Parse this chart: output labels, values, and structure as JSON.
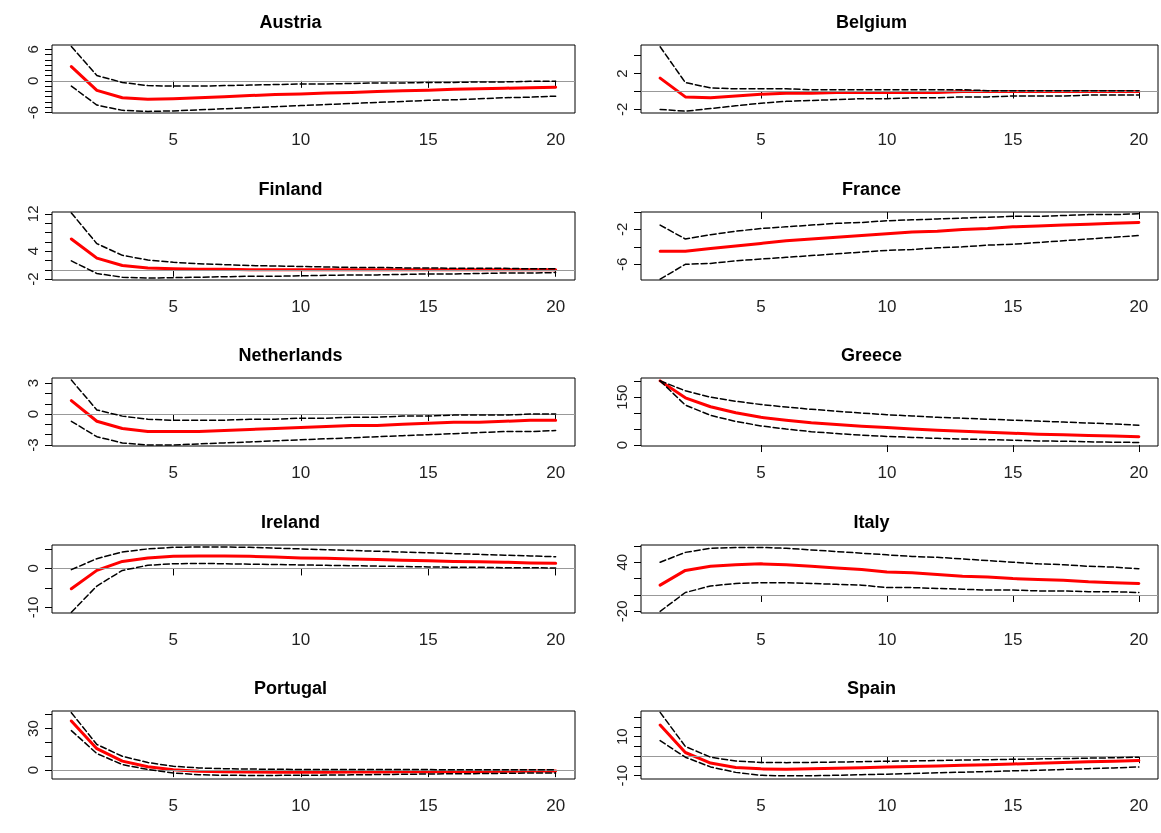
{
  "chart_data": [
    {
      "type": "line",
      "title": "Austria",
      "marker": "none",
      "x": [
        1,
        2,
        3,
        4,
        5,
        6,
        7,
        8,
        9,
        10,
        11,
        12,
        13,
        14,
        15,
        16,
        17,
        18,
        19,
        20
      ],
      "xlim": [
        0.24,
        20.76
      ],
      "xticks": [
        5,
        10,
        15,
        20
      ],
      "ylim": [
        -6.1,
        6.8
      ],
      "yticks": [
        -6,
        {
          "value": -5,
          "label": null
        },
        {
          "value": -4,
          "label": null
        },
        {
          "value": -3,
          "label": null
        },
        {
          "value": -2,
          "label": null
        },
        {
          "value": -1,
          "label": null
        },
        0,
        {
          "value": 1,
          "label": null
        },
        {
          "value": 2,
          "label": null
        },
        {
          "value": 3,
          "label": null
        },
        {
          "value": 4,
          "label": null
        },
        {
          "value": 5,
          "label": null
        },
        6
      ],
      "ref_lines": [
        {
          "axis": "y",
          "value": 0,
          "color": "#999999"
        }
      ],
      "series": [
        {
          "color": "#ff0000",
          "values": [
            2.7,
            -1.8,
            -3.2,
            -3.5,
            -3.4,
            -3.2,
            -3.0,
            -2.8,
            -2.6,
            -2.5,
            -2.3,
            -2.2,
            -2.0,
            -1.9,
            -1.8,
            -1.6,
            -1.5,
            -1.4,
            -1.3,
            -1.2
          ]
        },
        {
          "color": "#000000",
          "line_style": "dashed",
          "values": [
            6.5,
            1.0,
            -0.3,
            -0.9,
            -1.0,
            -1.0,
            -0.9,
            -0.8,
            -0.7,
            -0.6,
            -0.6,
            -0.5,
            -0.4,
            -0.4,
            -0.3,
            -0.3,
            -0.2,
            -0.2,
            -0.1,
            -0.1
          ]
        },
        {
          "color": "#000000",
          "line_style": "dashed",
          "values": [
            -1.0,
            -4.6,
            -5.6,
            -5.8,
            -5.7,
            -5.5,
            -5.3,
            -5.1,
            -4.9,
            -4.7,
            -4.5,
            -4.3,
            -4.1,
            -3.9,
            -3.7,
            -3.6,
            -3.4,
            -3.2,
            -3.1,
            -2.9
          ]
        }
      ]
    },
    {
      "type": "line",
      "title": "Belgium",
      "marker": "none",
      "x": [
        1,
        2,
        3,
        4,
        5,
        6,
        7,
        8,
        9,
        10,
        11,
        12,
        13,
        14,
        15,
        16,
        17,
        18,
        19,
        20
      ],
      "xlim": [
        0.24,
        20.76
      ],
      "xticks": [
        5,
        10,
        15,
        20
      ],
      "ylim": [
        -2.4,
        5.2
      ],
      "yticks": [
        -2,
        {
          "value": 0,
          "label": null
        },
        2,
        {
          "value": 4,
          "label": null
        }
      ],
      "ref_lines": [
        {
          "axis": "y",
          "value": 0,
          "color": "#999999"
        }
      ],
      "series": [
        {
          "color": "#ff0000",
          "values": [
            1.5,
            -0.6,
            -0.7,
            -0.5,
            -0.3,
            -0.2,
            -0.2,
            -0.1,
            -0.1,
            -0.1,
            -0.1,
            -0.1,
            0,
            0,
            0,
            0,
            0,
            0,
            0,
            0
          ]
        },
        {
          "color": "#000000",
          "line_style": "dashed",
          "values": [
            5.0,
            1.0,
            0.4,
            0.3,
            0.3,
            0.3,
            0.2,
            0.2,
            0.2,
            0.2,
            0.2,
            0.2,
            0.2,
            0.1,
            0.1,
            0.1,
            0.1,
            0.1,
            0.1,
            0.1
          ]
        },
        {
          "color": "#000000",
          "line_style": "dashed",
          "values": [
            -2.0,
            -2.2,
            -1.9,
            -1.6,
            -1.3,
            -1.1,
            -1.0,
            -0.9,
            -0.8,
            -0.8,
            -0.7,
            -0.7,
            -0.6,
            -0.6,
            -0.5,
            -0.5,
            -0.5,
            -0.4,
            -0.4,
            -0.4
          ]
        }
      ]
    },
    {
      "type": "line",
      "title": "Finland",
      "marker": "none",
      "x": [
        1,
        2,
        3,
        4,
        5,
        6,
        7,
        8,
        9,
        10,
        11,
        12,
        13,
        14,
        15,
        16,
        17,
        18,
        19,
        20
      ],
      "xlim": [
        0.24,
        20.76
      ],
      "xticks": [
        5,
        10,
        15,
        20
      ],
      "ylim": [
        -2.2,
        12.4
      ],
      "yticks": [
        -2,
        {
          "value": 0,
          "label": null
        },
        {
          "value": 2,
          "label": null
        },
        4,
        {
          "value": 6,
          "label": null
        },
        {
          "value": 8,
          "label": null
        },
        {
          "value": 10,
          "label": null
        },
        12
      ],
      "ref_lines": [
        {
          "axis": "y",
          "value": 0,
          "color": "#999999"
        }
      ],
      "series": [
        {
          "color": "#ff0000",
          "values": [
            6.6,
            2.5,
            0.9,
            0.4,
            0.2,
            0.1,
            0.1,
            0,
            0,
            0,
            0,
            0,
            0,
            0,
            0,
            0,
            0,
            0,
            0,
            0
          ]
        },
        {
          "color": "#000000",
          "line_style": "dashed",
          "values": [
            12.2,
            5.6,
            3.1,
            2.1,
            1.6,
            1.3,
            1.1,
            0.9,
            0.8,
            0.7,
            0.6,
            0.5,
            0.5,
            0.4,
            0.4,
            0.3,
            0.3,
            0.3,
            0.2,
            0.2
          ]
        },
        {
          "color": "#000000",
          "line_style": "dashed",
          "values": [
            1.9,
            -0.8,
            -1.6,
            -1.8,
            -1.7,
            -1.6,
            -1.5,
            -1.4,
            -1.4,
            -1.3,
            -1.2,
            -1.1,
            -1.1,
            -1.0,
            -0.9,
            -0.9,
            -0.8,
            -0.7,
            -0.7,
            -0.6
          ]
        }
      ]
    },
    {
      "type": "line",
      "title": "France",
      "marker": "none",
      "x": [
        1,
        2,
        3,
        4,
        5,
        6,
        7,
        8,
        9,
        10,
        11,
        12,
        13,
        14,
        15,
        16,
        17,
        18,
        19,
        20
      ],
      "xlim": [
        0.24,
        20.76
      ],
      "xticks": [
        5,
        10,
        15,
        20
      ],
      "ylim": [
        -7.8,
        0
      ],
      "yticks": [
        -6,
        {
          "value": -4,
          "label": null
        },
        -2,
        {
          "value": 0,
          "label": null
        }
      ],
      "series": [
        {
          "color": "#ff0000",
          "values": [
            -4.5,
            -4.5,
            -4.2,
            -3.9,
            -3.6,
            -3.3,
            -3.1,
            -2.9,
            -2.7,
            -2.5,
            -2.3,
            -2.2,
            -2.0,
            -1.9,
            -1.7,
            -1.6,
            -1.5,
            -1.4,
            -1.3,
            -1.2
          ]
        },
        {
          "color": "#000000",
          "line_style": "dashed",
          "values": [
            -1.5,
            -3.1,
            -2.6,
            -2.2,
            -1.9,
            -1.7,
            -1.5,
            -1.3,
            -1.2,
            -1.0,
            -0.9,
            -0.8,
            -0.7,
            -0.6,
            -0.5,
            -0.5,
            -0.4,
            -0.3,
            -0.3,
            -0.2
          ]
        },
        {
          "color": "#000000",
          "line_style": "dashed",
          "values": [
            -7.7,
            -6.0,
            -5.9,
            -5.6,
            -5.4,
            -5.2,
            -5.0,
            -4.8,
            -4.6,
            -4.4,
            -4.3,
            -4.1,
            -4.0,
            -3.8,
            -3.7,
            -3.5,
            -3.3,
            -3.1,
            -2.9,
            -2.7
          ]
        }
      ]
    },
    {
      "type": "line",
      "title": "Netherlands",
      "marker": "none",
      "x": [
        1,
        2,
        3,
        4,
        5,
        6,
        7,
        8,
        9,
        10,
        11,
        12,
        13,
        14,
        15,
        16,
        17,
        18,
        19,
        20
      ],
      "xlim": [
        0.24,
        20.76
      ],
      "xticks": [
        5,
        10,
        15,
        20
      ],
      "ylim": [
        -3.1,
        3.5
      ],
      "yticks": [
        -3,
        {
          "value": -2,
          "label": null
        },
        {
          "value": -1,
          "label": null
        },
        0,
        {
          "value": 1,
          "label": null
        },
        {
          "value": 2,
          "label": null
        },
        3
      ],
      "ref_lines": [
        {
          "axis": "y",
          "value": 0,
          "color": "#999999"
        }
      ],
      "series": [
        {
          "color": "#ff0000",
          "values": [
            1.3,
            -0.7,
            -1.4,
            -1.7,
            -1.7,
            -1.7,
            -1.6,
            -1.5,
            -1.4,
            -1.3,
            -1.2,
            -1.1,
            -1.1,
            -1.0,
            -0.9,
            -0.8,
            -0.8,
            -0.7,
            -0.6,
            -0.6
          ]
        },
        {
          "color": "#000000",
          "line_style": "dashed",
          "values": [
            3.3,
            0.4,
            -0.2,
            -0.5,
            -0.6,
            -0.6,
            -0.6,
            -0.5,
            -0.5,
            -0.4,
            -0.4,
            -0.3,
            -0.3,
            -0.2,
            -0.2,
            -0.1,
            -0.1,
            -0.1,
            0,
            0
          ]
        },
        {
          "color": "#000000",
          "line_style": "dashed",
          "values": [
            -0.7,
            -2.2,
            -2.8,
            -3.0,
            -3.0,
            -2.9,
            -2.8,
            -2.7,
            -2.6,
            -2.5,
            -2.4,
            -2.3,
            -2.2,
            -2.1,
            -2.0,
            -1.9,
            -1.8,
            -1.7,
            -1.7,
            -1.6
          ]
        }
      ]
    },
    {
      "type": "line",
      "title": "Greece",
      "marker": "none",
      "x": [
        1,
        2,
        3,
        4,
        5,
        6,
        7,
        8,
        9,
        10,
        11,
        12,
        13,
        14,
        15,
        16,
        17,
        18,
        19,
        20
      ],
      "xlim": [
        0.24,
        20.76
      ],
      "xticks": [
        5,
        10,
        15,
        20
      ],
      "ylim": [
        -3,
        210
      ],
      "yticks": [
        0,
        {
          "value": 50,
          "label": null
        },
        {
          "value": 100,
          "label": null
        },
        150,
        {
          "value": 200,
          "label": null
        }
      ],
      "series": [
        {
          "color": "#ff0000",
          "values": [
            201,
            148,
            120,
            101,
            87,
            78,
            70,
            64,
            59,
            55,
            50,
            46,
            43,
            40,
            37,
            34,
            32,
            30,
            28,
            26
          ]
        },
        {
          "color": "#000000",
          "line_style": "dashed",
          "values": [
            201,
            170,
            150,
            137,
            127,
            119,
            112,
            106,
            100,
            95,
            91,
            87,
            84,
            81,
            78,
            75,
            72,
            69,
            66,
            62
          ]
        },
        {
          "color": "#000000",
          "line_style": "dashed",
          "values": [
            201,
            125,
            93,
            74,
            60,
            50,
            42,
            36,
            31,
            27,
            24,
            21,
            19,
            17,
            15,
            13,
            12,
            10,
            9,
            8
          ]
        }
      ]
    },
    {
      "type": "line",
      "title": "Ireland",
      "marker": "none",
      "x": [
        1,
        2,
        3,
        4,
        5,
        6,
        7,
        8,
        9,
        10,
        11,
        12,
        13,
        14,
        15,
        16,
        17,
        18,
        19,
        20
      ],
      "xlim": [
        0.24,
        20.76
      ],
      "xticks": [
        5,
        10,
        15,
        20
      ],
      "ylim": [
        -11.4,
        6
      ],
      "yticks": [
        -10,
        {
          "value": -5,
          "label": null
        },
        0,
        {
          "value": 5,
          "label": null
        }
      ],
      "ref_lines": [
        {
          "axis": "y",
          "value": 0,
          "color": "#999999"
        }
      ],
      "series": [
        {
          "color": "#ff0000",
          "values": [
            -5.2,
            -0.5,
            1.8,
            2.7,
            3.1,
            3.2,
            3.2,
            3.1,
            2.9,
            2.7,
            2.6,
            2.4,
            2.3,
            2.1,
            2.0,
            1.8,
            1.7,
            1.6,
            1.4,
            1.3
          ]
        },
        {
          "color": "#000000",
          "line_style": "dashed",
          "values": [
            -0.3,
            2.5,
            4.2,
            5.0,
            5.4,
            5.5,
            5.5,
            5.4,
            5.2,
            5.0,
            4.8,
            4.6,
            4.4,
            4.2,
            4.0,
            3.8,
            3.6,
            3.4,
            3.2,
            3.0
          ]
        },
        {
          "color": "#000000",
          "line_style": "dashed",
          "values": [
            -11.2,
            -4.5,
            -0.5,
            0.8,
            1.2,
            1.3,
            1.2,
            1.1,
            1.0,
            0.9,
            0.8,
            0.7,
            0.6,
            0.5,
            0.4,
            0.3,
            0.3,
            0.2,
            0.2,
            0.1
          ]
        }
      ]
    },
    {
      "type": "line",
      "title": "Italy",
      "marker": "none",
      "x": [
        1,
        2,
        3,
        4,
        5,
        6,
        7,
        8,
        9,
        10,
        11,
        12,
        13,
        14,
        15,
        16,
        17,
        18,
        19,
        20
      ],
      "xlim": [
        0.24,
        20.76
      ],
      "xticks": [
        5,
        10,
        15,
        20
      ],
      "ylim": [
        -22,
        61
      ],
      "yticks": [
        -20,
        {
          "value": 0,
          "label": null
        },
        {
          "value": 20,
          "label": null
        },
        40,
        {
          "value": 60,
          "label": null
        }
      ],
      "ref_lines": [
        {
          "axis": "y",
          "value": 0,
          "color": "#999999"
        }
      ],
      "series": [
        {
          "color": "#ff0000",
          "values": [
            12,
            30,
            35,
            37,
            38,
            37,
            35,
            33,
            31,
            28,
            27,
            25,
            23,
            22,
            20,
            19,
            18,
            16,
            15,
            14
          ]
        },
        {
          "color": "#000000",
          "line_style": "dashed",
          "values": [
            40,
            52,
            57,
            58,
            58,
            57,
            55,
            53,
            51,
            49,
            47,
            46,
            44,
            42,
            40,
            38,
            37,
            35,
            34,
            32
          ]
        },
        {
          "color": "#000000",
          "line_style": "dashed",
          "values": [
            -20,
            3,
            11,
            14,
            15,
            15,
            14,
            13,
            12,
            9,
            9,
            8,
            7,
            6,
            6,
            5,
            5,
            4,
            4,
            3
          ]
        }
      ]
    },
    {
      "type": "line",
      "title": "Portugal",
      "marker": "none",
      "x": [
        1,
        2,
        3,
        4,
        5,
        6,
        7,
        8,
        9,
        10,
        11,
        12,
        13,
        14,
        15,
        16,
        17,
        18,
        19,
        20
      ],
      "xlim": [
        0.24,
        20.76
      ],
      "xticks": [
        5,
        10,
        15,
        20
      ],
      "ylim": [
        -6.4,
        42.7
      ],
      "yticks": [
        0,
        {
          "value": 10,
          "label": null
        },
        {
          "value": 20,
          "label": null
        },
        30,
        {
          "value": 40,
          "label": null
        }
      ],
      "ref_lines": [
        {
          "axis": "y",
          "value": 0,
          "color": "#999999"
        }
      ],
      "series": [
        {
          "color": "#ff0000",
          "values": [
            35.5,
            15.5,
            6.5,
            2.5,
            0.3,
            -0.8,
            -1.2,
            -1.4,
            -1.5,
            -1.5,
            -1.5,
            -1.4,
            -1.3,
            -1.2,
            -1.1,
            -1.0,
            -0.9,
            -0.8,
            -0.7,
            -0.6
          ]
        },
        {
          "color": "#000000",
          "line_style": "dashed",
          "values": [
            41.5,
            18.5,
            10,
            5.5,
            2.8,
            1.6,
            1.0,
            0.8,
            0.6,
            0.5,
            0.5,
            0.4,
            0.4,
            0.4,
            0.4,
            0.3,
            0.3,
            0.3,
            0.3,
            0.3
          ]
        },
        {
          "color": "#000000",
          "line_style": "dashed",
          "values": [
            28.5,
            12,
            4,
            0.5,
            -2.0,
            -3.3,
            -3.7,
            -3.8,
            -3.8,
            -3.7,
            -3.6,
            -3.4,
            -3.2,
            -3.0,
            -2.8,
            -2.6,
            -2.5,
            -2.3,
            -2.1,
            -2.0
          ]
        }
      ]
    },
    {
      "type": "line",
      "title": "Spain",
      "marker": "none",
      "x": [
        1,
        2,
        3,
        4,
        5,
        6,
        7,
        8,
        9,
        10,
        11,
        12,
        13,
        14,
        15,
        16,
        17,
        18,
        19,
        20
      ],
      "xlim": [
        0.24,
        20.76
      ],
      "xticks": [
        5,
        10,
        15,
        20
      ],
      "ylim": [
        -11.7,
        23.2
      ],
      "yticks": [
        -10,
        {
          "value": -5,
          "label": null
        },
        {
          "value": 0,
          "label": null
        },
        {
          "value": 5,
          "label": null
        },
        10,
        {
          "value": 15,
          "label": null
        },
        {
          "value": 20,
          "label": null
        }
      ],
      "ref_lines": [
        {
          "axis": "y",
          "value": 0,
          "color": "#999999"
        }
      ],
      "series": [
        {
          "color": "#ff0000",
          "values": [
            16,
            1.9,
            -3.5,
            -5.8,
            -6.5,
            -6.7,
            -6.5,
            -6.2,
            -5.9,
            -5.6,
            -5.3,
            -5.0,
            -4.7,
            -4.4,
            -4.0,
            -3.6,
            -3.2,
            -2.9,
            -2.6,
            -2.2
          ]
        },
        {
          "color": "#000000",
          "line_style": "dashed",
          "values": [
            22.5,
            5,
            -0.5,
            -2.5,
            -3.2,
            -3.3,
            -3.2,
            -3.0,
            -2.8,
            -2.6,
            -2.4,
            -2.2,
            -2.0,
            -1.8,
            -1.6,
            -1.4,
            -1.2,
            -1.0,
            -0.8,
            -0.5
          ]
        },
        {
          "color": "#000000",
          "line_style": "dashed",
          "values": [
            8,
            -0.5,
            -5.5,
            -8.3,
            -9.8,
            -10.1,
            -10.0,
            -9.8,
            -9.5,
            -9.2,
            -8.9,
            -8.5,
            -8.2,
            -7.9,
            -7.5,
            -7.2,
            -6.8,
            -6.4,
            -6.0,
            -5.5
          ]
        }
      ]
    }
  ]
}
